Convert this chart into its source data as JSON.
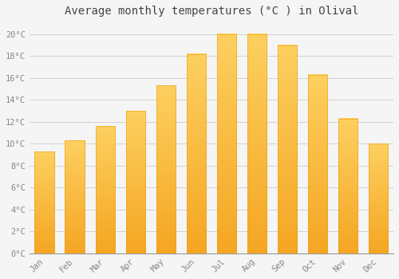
{
  "months": [
    "Jan",
    "Feb",
    "Mar",
    "Apr",
    "May",
    "Jun",
    "Jul",
    "Aug",
    "Sep",
    "Oct",
    "Nov",
    "Dec"
  ],
  "values": [
    9.3,
    10.3,
    11.6,
    13.0,
    15.3,
    18.2,
    20.0,
    20.0,
    19.0,
    16.3,
    12.3,
    10.0
  ],
  "bar_color_top": "#FDD060",
  "bar_color_bottom": "#F5A623",
  "bar_edge_color": "#E8A010",
  "title": "Average monthly temperatures (°C ) in Olival",
  "title_fontsize": 10,
  "ylim": [
    0,
    21
  ],
  "ytick_step": 2,
  "background_color": "#F5F5F5",
  "plot_bg_color": "#F5F5F5",
  "grid_color": "#CCCCCC",
  "tick_label_color": "#888888",
  "title_color": "#444444",
  "font_family": "monospace"
}
